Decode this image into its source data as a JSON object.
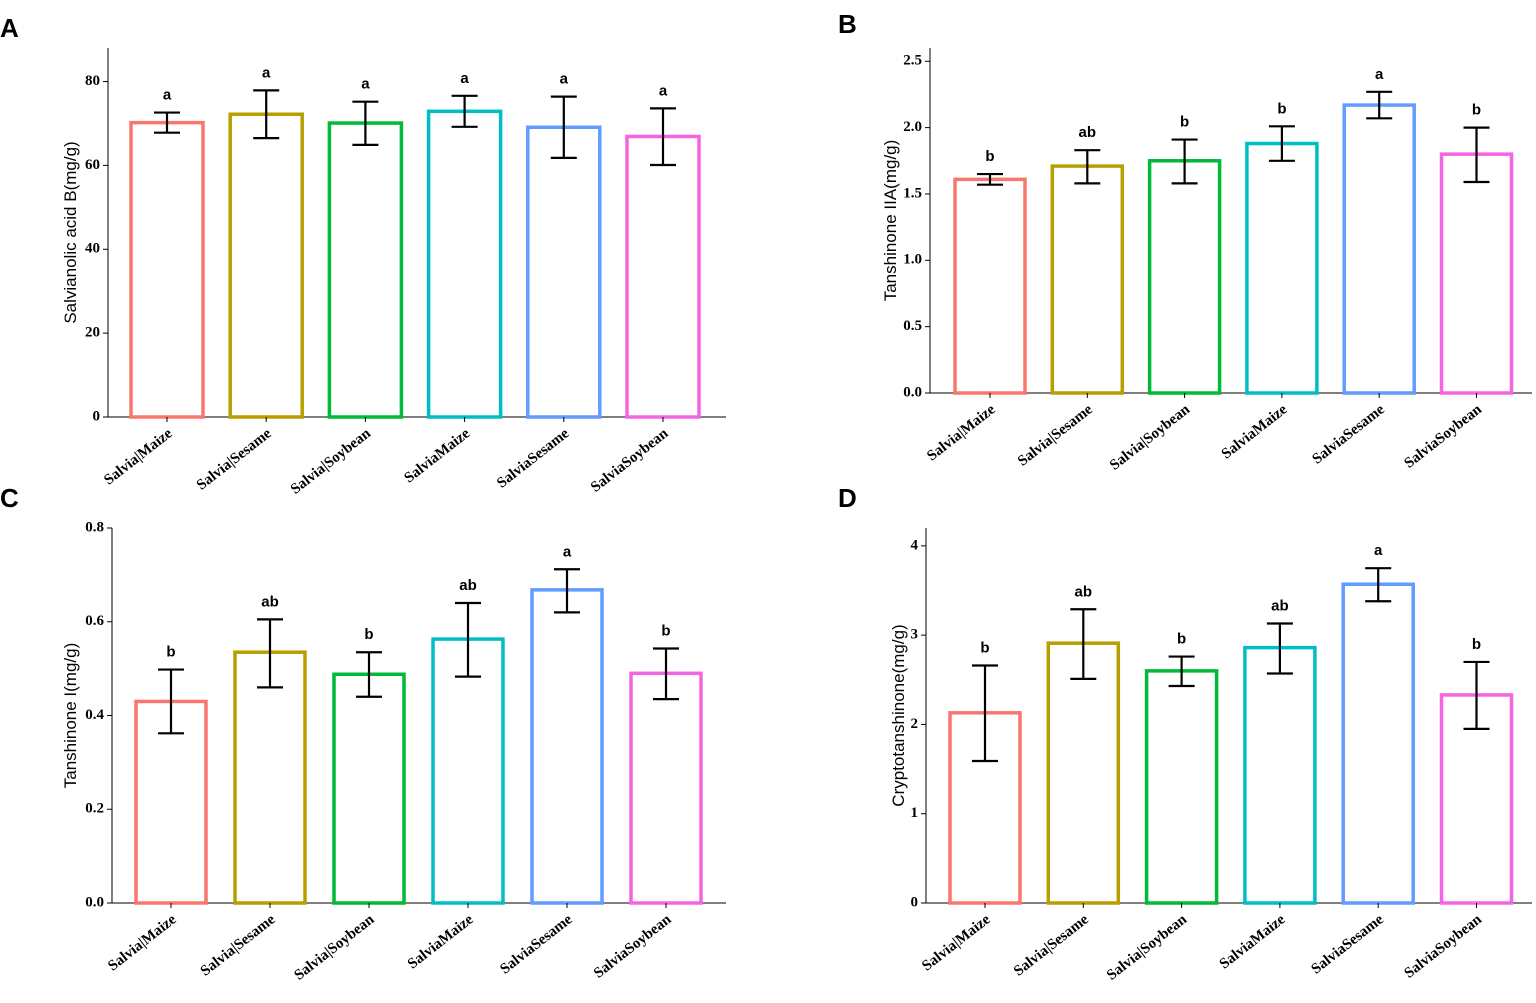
{
  "chart_data": [
    {
      "panel": "A",
      "type": "bar",
      "ylabel": "Salvianolic acid B(mg/g)",
      "ylim": [
        0,
        88
      ],
      "yticks": [
        0,
        20,
        40,
        60,
        80
      ],
      "ytick_labels": [
        "0",
        "20",
        "40",
        "60",
        "80"
      ],
      "categories": [
        "Salvia|Maize",
        "Salvia|Sesame",
        "Salvia|Soybean",
        "SalviaMaize",
        "SalviaSesame",
        "SalviaSoybean"
      ],
      "values": [
        70.2,
        72.2,
        70.1,
        72.9,
        69.1,
        66.9
      ],
      "err_low": [
        67.8,
        66.5,
        64.9,
        69.2,
        61.8,
        60.1
      ],
      "err_high": [
        72.6,
        77.9,
        75.2,
        76.6,
        76.4,
        73.6
      ],
      "letters": [
        "a",
        "a",
        "a",
        "a",
        "a",
        "a"
      ]
    },
    {
      "panel": "B",
      "type": "bar",
      "ylabel": "Tanshinone IIA(mg/g)",
      "ylim": [
        0,
        2.6
      ],
      "yticks": [
        0,
        0.5,
        1,
        1.5,
        2,
        2.5
      ],
      "ytick_labels": [
        "0.0",
        "0.5",
        "1.0",
        "1.5",
        "2.0",
        "2.5"
      ],
      "categories": [
        "Salvia|Maize",
        "Salvia|Sesame",
        "Salvia|Soybean",
        "SalviaMaize",
        "SalviaSesame",
        "SalviaSoybean"
      ],
      "values": [
        1.61,
        1.71,
        1.75,
        1.88,
        2.17,
        1.8
      ],
      "err_low": [
        1.57,
        1.58,
        1.58,
        1.75,
        2.07,
        1.59
      ],
      "err_high": [
        1.65,
        1.83,
        1.91,
        2.01,
        2.27,
        2.0
      ],
      "letters": [
        "b",
        "ab",
        "b",
        "b",
        "a",
        "b"
      ]
    },
    {
      "panel": "C",
      "type": "bar",
      "ylabel": "Tanshinone I(mg/g)",
      "ylim": [
        0,
        0.8
      ],
      "yticks": [
        0,
        0.2,
        0.4,
        0.6,
        0.8
      ],
      "ytick_labels": [
        "0.0",
        "0.2",
        "0.4",
        "0.6",
        "0.8"
      ],
      "categories": [
        "Salvia|Maize",
        "Salvia|Sesame",
        "Salvia|Soybean",
        "SalviaMaize",
        "SalviaSesame",
        "SalviaSoybean"
      ],
      "values": [
        0.43,
        0.535,
        0.488,
        0.563,
        0.668,
        0.49
      ],
      "err_low": [
        0.362,
        0.46,
        0.44,
        0.483,
        0.62,
        0.435
      ],
      "err_high": [
        0.498,
        0.605,
        0.535,
        0.64,
        0.712,
        0.543
      ],
      "letters": [
        "b",
        "ab",
        "b",
        "ab",
        "a",
        "b"
      ]
    },
    {
      "panel": "D",
      "type": "bar",
      "ylabel": "Cryptotanshinone(mg/g)",
      "ylim": [
        0,
        4.2
      ],
      "yticks": [
        0,
        1,
        2,
        3,
        4
      ],
      "ytick_labels": [
        "0",
        "1",
        "2",
        "3",
        "4"
      ],
      "categories": [
        "Salvia|Maize",
        "Salvia|Sesame",
        "Salvia|Soybean",
        "SalviaMaize",
        "SalviaSesame",
        "SalviaSoybean"
      ],
      "values": [
        2.13,
        2.91,
        2.6,
        2.86,
        3.57,
        2.33
      ],
      "err_low": [
        1.59,
        2.51,
        2.43,
        2.57,
        3.38,
        1.95
      ],
      "err_high": [
        2.66,
        3.29,
        2.76,
        3.13,
        3.75,
        2.7
      ],
      "letters": [
        "b",
        "ab",
        "b",
        "ab",
        "a",
        "b"
      ]
    }
  ],
  "colors": [
    "#F8766D",
    "#B79F00",
    "#00BA38",
    "#00BFC4",
    "#619CFF",
    "#F564E3"
  ]
}
